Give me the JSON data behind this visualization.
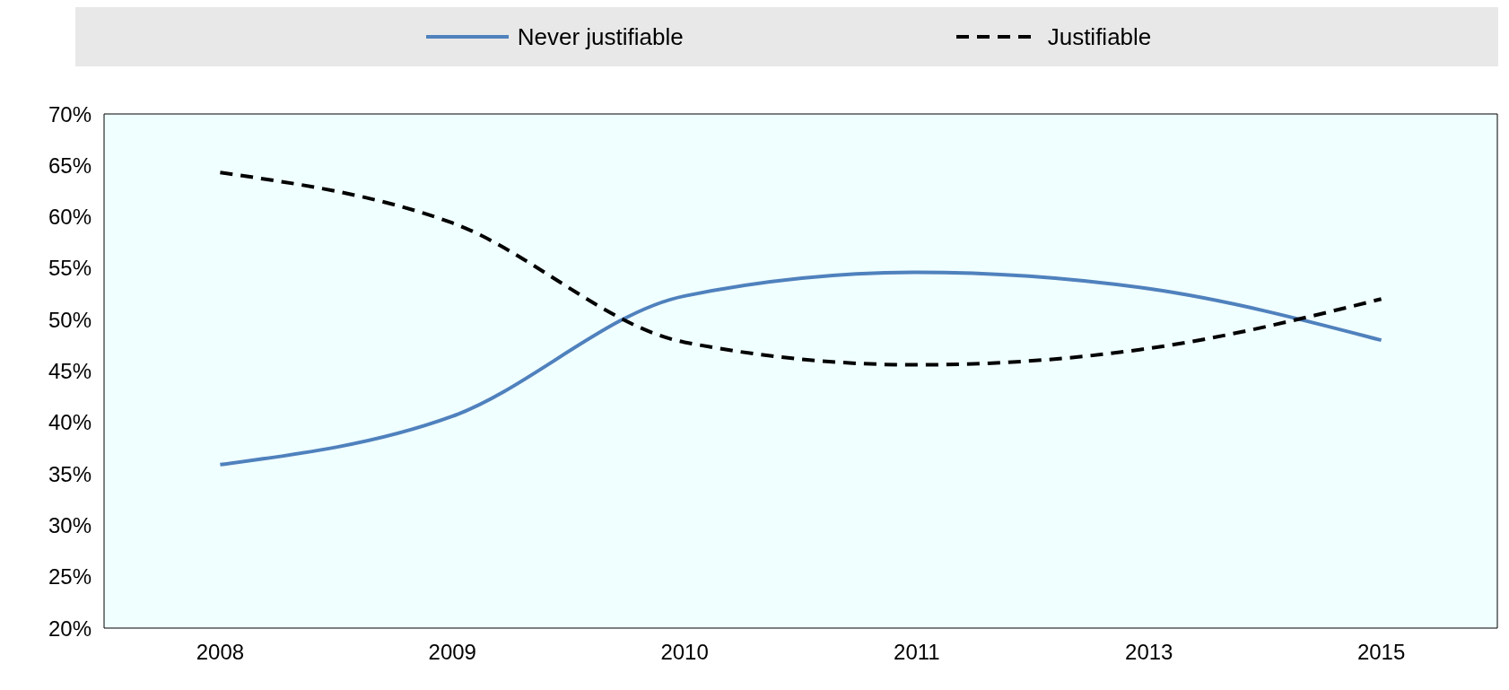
{
  "chart_data": {
    "type": "line",
    "categories": [
      "2008",
      "2009",
      "2010",
      "2011",
      "2013",
      "2015"
    ],
    "series": [
      {
        "name": "Never justifiable",
        "color": "#4f81bd",
        "line_style": "solid",
        "values": [
          35.9,
          40.6,
          52.3,
          54.6,
          53.0,
          48.0
        ]
      },
      {
        "name": "Justifiable",
        "color": "#000000",
        "line_style": "dashed",
        "values": [
          64.3,
          59.4,
          47.8,
          45.6,
          47.2,
          52.0
        ]
      }
    ],
    "ylim": [
      20,
      70
    ],
    "yticks": [
      {
        "value": 20,
        "label": "20%"
      },
      {
        "value": 25,
        "label": "25%"
      },
      {
        "value": 30,
        "label": "30%"
      },
      {
        "value": 35,
        "label": "35%"
      },
      {
        "value": 40,
        "label": "40%"
      },
      {
        "value": 45,
        "label": "45%"
      },
      {
        "value": 50,
        "label": "50%"
      },
      {
        "value": 55,
        "label": "55%"
      },
      {
        "value": 60,
        "label": "60%"
      },
      {
        "value": 65,
        "label": "65%"
      },
      {
        "value": 70,
        "label": "70%"
      }
    ],
    "grid": false,
    "legend": "top",
    "marker": "none"
  }
}
